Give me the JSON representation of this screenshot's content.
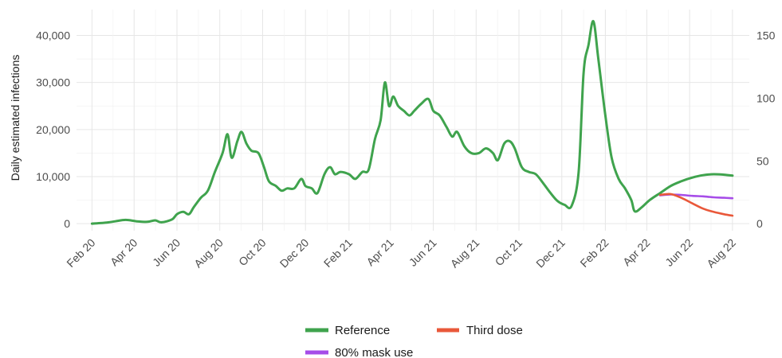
{
  "chart_data": {
    "type": "line",
    "ylabel": "Daily estimated infections",
    "y_left": {
      "ticks": [
        0,
        10000,
        20000,
        30000,
        40000
      ],
      "tick_labels": [
        "0",
        "10,000",
        "20,000",
        "30,000",
        "40,000"
      ],
      "lim": [
        -1500,
        45500
      ]
    },
    "y_right": {
      "ticks": [
        0,
        50,
        100,
        150
      ],
      "tick_labels": [
        "0",
        "50",
        "100",
        "150"
      ]
    },
    "x_tick_labels": [
      "Feb 20",
      "Apr 20",
      "Jun 20",
      "Aug 20",
      "Oct 20",
      "Dec 20",
      "Feb 21",
      "Apr 21",
      "Jun 21",
      "Aug 21",
      "Oct 21",
      "Dec 21",
      "Feb 22",
      "Apr 22",
      "Jun 22",
      "Aug 22"
    ],
    "x_tick_dates": [
      "2020-02-01",
      "2020-04-01",
      "2020-06-01",
      "2020-08-01",
      "2020-10-01",
      "2020-12-01",
      "2021-02-01",
      "2021-04-01",
      "2021-06-01",
      "2021-08-01",
      "2021-10-01",
      "2021-12-01",
      "2022-02-01",
      "2022-04-01",
      "2022-06-01",
      "2022-08-01"
    ],
    "x_lim": [
      "2020-01-10",
      "2022-08-25"
    ],
    "grid": true,
    "legend_position": "bottom",
    "series": [
      {
        "name": "Reference",
        "color": "#3fa34d",
        "points": [
          [
            "2020-02-01",
            0
          ],
          [
            "2020-02-20",
            200
          ],
          [
            "2020-03-05",
            500
          ],
          [
            "2020-03-20",
            800
          ],
          [
            "2020-04-05",
            500
          ],
          [
            "2020-04-20",
            400
          ],
          [
            "2020-05-01",
            700
          ],
          [
            "2020-05-10",
            300
          ],
          [
            "2020-05-25",
            900
          ],
          [
            "2020-06-01",
            2000
          ],
          [
            "2020-06-10",
            2500
          ],
          [
            "2020-06-18",
            2000
          ],
          [
            "2020-06-25",
            3500
          ],
          [
            "2020-07-05",
            5500
          ],
          [
            "2020-07-15",
            7000
          ],
          [
            "2020-07-25",
            11000
          ],
          [
            "2020-08-05",
            15000
          ],
          [
            "2020-08-12",
            19000
          ],
          [
            "2020-08-18",
            14000
          ],
          [
            "2020-08-26",
            17500
          ],
          [
            "2020-09-01",
            19500
          ],
          [
            "2020-09-08",
            17000
          ],
          [
            "2020-09-15",
            15500
          ],
          [
            "2020-09-25",
            15000
          ],
          [
            "2020-10-03",
            12000
          ],
          [
            "2020-10-10",
            9000
          ],
          [
            "2020-10-20",
            8000
          ],
          [
            "2020-10-28",
            7000
          ],
          [
            "2020-11-05",
            7500
          ],
          [
            "2020-11-15",
            7500
          ],
          [
            "2020-11-25",
            9500
          ],
          [
            "2020-12-01",
            8000
          ],
          [
            "2020-12-10",
            7500
          ],
          [
            "2020-12-18",
            6500
          ],
          [
            "2020-12-28",
            10500
          ],
          [
            "2021-01-05",
            12000
          ],
          [
            "2021-01-12",
            10500
          ],
          [
            "2021-01-20",
            11000
          ],
          [
            "2021-02-01",
            10500
          ],
          [
            "2021-02-10",
            9500
          ],
          [
            "2021-02-20",
            11000
          ],
          [
            "2021-03-01",
            11500
          ],
          [
            "2021-03-10",
            18000
          ],
          [
            "2021-03-18",
            22000
          ],
          [
            "2021-03-24",
            30000
          ],
          [
            "2021-03-30",
            25000
          ],
          [
            "2021-04-05",
            27000
          ],
          [
            "2021-04-12",
            25000
          ],
          [
            "2021-04-20",
            24000
          ],
          [
            "2021-04-28",
            23000
          ],
          [
            "2021-05-05",
            24000
          ],
          [
            "2021-05-15",
            25500
          ],
          [
            "2021-05-25",
            26500
          ],
          [
            "2021-06-01",
            24000
          ],
          [
            "2021-06-10",
            23000
          ],
          [
            "2021-06-20",
            20500
          ],
          [
            "2021-06-28",
            18500
          ],
          [
            "2021-07-05",
            19500
          ],
          [
            "2021-07-15",
            16500
          ],
          [
            "2021-07-25",
            15000
          ],
          [
            "2021-08-05",
            15000
          ],
          [
            "2021-08-15",
            16000
          ],
          [
            "2021-08-25",
            15000
          ],
          [
            "2021-09-01",
            13500
          ],
          [
            "2021-09-10",
            17000
          ],
          [
            "2021-09-18",
            17500
          ],
          [
            "2021-09-25",
            16000
          ],
          [
            "2021-10-05",
            12000
          ],
          [
            "2021-10-15",
            11000
          ],
          [
            "2021-10-25",
            10500
          ],
          [
            "2021-11-05",
            8500
          ],
          [
            "2021-11-15",
            6500
          ],
          [
            "2021-11-25",
            4800
          ],
          [
            "2021-12-05",
            4000
          ],
          [
            "2021-12-15",
            3800
          ],
          [
            "2021-12-25",
            11000
          ],
          [
            "2022-01-01",
            32000
          ],
          [
            "2022-01-08",
            38000
          ],
          [
            "2022-01-15",
            43000
          ],
          [
            "2022-01-22",
            35000
          ],
          [
            "2022-02-01",
            23000
          ],
          [
            "2022-02-10",
            14000
          ],
          [
            "2022-02-20",
            9500
          ],
          [
            "2022-03-01",
            7500
          ],
          [
            "2022-03-10",
            5000
          ],
          [
            "2022-03-15",
            2600
          ],
          [
            "2022-03-25",
            3500
          ],
          [
            "2022-04-05",
            5000
          ],
          [
            "2022-04-20",
            6500
          ],
          [
            "2022-05-05",
            8000
          ],
          [
            "2022-05-20",
            9000
          ],
          [
            "2022-06-05",
            9800
          ],
          [
            "2022-06-20",
            10300
          ],
          [
            "2022-07-05",
            10500
          ],
          [
            "2022-07-20",
            10400
          ],
          [
            "2022-08-01",
            10200
          ]
        ]
      },
      {
        "name": "80% mask use",
        "color": "#a64ce8",
        "points": [
          [
            "2022-04-20",
            6000
          ],
          [
            "2022-05-05",
            6200
          ],
          [
            "2022-05-20",
            6100
          ],
          [
            "2022-06-05",
            5900
          ],
          [
            "2022-06-20",
            5800
          ],
          [
            "2022-07-05",
            5600
          ],
          [
            "2022-07-20",
            5500
          ],
          [
            "2022-08-01",
            5400
          ]
        ]
      },
      {
        "name": "Third dose",
        "color": "#e9583a",
        "points": [
          [
            "2022-04-20",
            6100
          ],
          [
            "2022-05-05",
            6300
          ],
          [
            "2022-05-20",
            5500
          ],
          [
            "2022-06-05",
            4300
          ],
          [
            "2022-06-20",
            3200
          ],
          [
            "2022-07-05",
            2500
          ],
          [
            "2022-07-20",
            2000
          ],
          [
            "2022-08-01",
            1700
          ]
        ]
      }
    ]
  }
}
